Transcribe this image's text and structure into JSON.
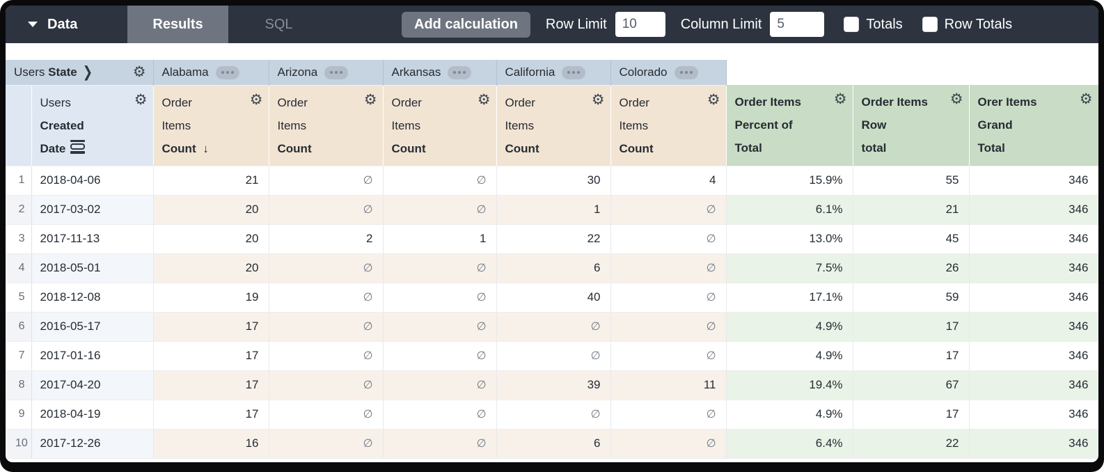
{
  "toolbar": {
    "data_label": "Data",
    "results_tab": "Results",
    "sql_tab": "SQL",
    "add_calculation": "Add calculation",
    "row_limit_label": "Row Limit",
    "row_limit_value": "10",
    "column_limit_label": "Column Limit",
    "column_limit_value": "5",
    "totals_label": "Totals",
    "totals_checked": false,
    "row_totals_label": "Row Totals",
    "row_totals_checked": false
  },
  "icons": {
    "gear": "⚙",
    "chevron": "❯",
    "sort_desc": "↓"
  },
  "pivot_header": {
    "view": "Users",
    "field": "State",
    "values": [
      "Alabama",
      "Arizona",
      "Arkansas",
      "California",
      "Colorado"
    ]
  },
  "column_headers": {
    "dimension": {
      "view": "Users",
      "field_lines": [
        "Created",
        "Date"
      ]
    },
    "measure": {
      "view_lines": [
        "Order",
        "Items"
      ],
      "field": "Count",
      "sorted_desc_on_first": true
    },
    "calculations": [
      {
        "lines": [
          "Order Items",
          "Percent of",
          "Total"
        ]
      },
      {
        "lines": [
          "Order Items",
          "Row",
          "total"
        ]
      },
      {
        "lines": [
          "Orer Items",
          "Grand",
          "Total"
        ]
      }
    ]
  },
  "table": {
    "null_symbol": "∅",
    "rows": [
      {
        "num": "1",
        "date": "2018-04-06",
        "states": [
          "21",
          null,
          null,
          "30",
          "4"
        ],
        "percent_of_total": "15.9%",
        "row_total": "55",
        "grand_total": "346"
      },
      {
        "num": "2",
        "date": "2017-03-02",
        "states": [
          "20",
          null,
          null,
          "1",
          null
        ],
        "percent_of_total": "6.1%",
        "row_total": "21",
        "grand_total": "346"
      },
      {
        "num": "3",
        "date": "2017-11-13",
        "states": [
          "20",
          "2",
          "1",
          "22",
          null
        ],
        "percent_of_total": "13.0%",
        "row_total": "45",
        "grand_total": "346"
      },
      {
        "num": "4",
        "date": "2018-05-01",
        "states": [
          "20",
          null,
          null,
          "6",
          null
        ],
        "percent_of_total": "7.5%",
        "row_total": "26",
        "grand_total": "346"
      },
      {
        "num": "5",
        "date": "2018-12-08",
        "states": [
          "19",
          null,
          null,
          "40",
          null
        ],
        "percent_of_total": "17.1%",
        "row_total": "59",
        "grand_total": "346"
      },
      {
        "num": "6",
        "date": "2016-05-17",
        "states": [
          "17",
          null,
          null,
          null,
          null
        ],
        "percent_of_total": "4.9%",
        "row_total": "17",
        "grand_total": "346"
      },
      {
        "num": "7",
        "date": "2017-01-16",
        "states": [
          "17",
          null,
          null,
          null,
          null
        ],
        "percent_of_total": "4.9%",
        "row_total": "17",
        "grand_total": "346"
      },
      {
        "num": "8",
        "date": "2017-04-20",
        "states": [
          "17",
          null,
          null,
          "39",
          "11"
        ],
        "percent_of_total": "19.4%",
        "row_total": "67",
        "grand_total": "346"
      },
      {
        "num": "9",
        "date": "2018-04-19",
        "states": [
          "17",
          null,
          null,
          null,
          null
        ],
        "percent_of_total": "4.9%",
        "row_total": "17",
        "grand_total": "346"
      },
      {
        "num": "10",
        "date": "2017-12-26",
        "states": [
          "16",
          null,
          null,
          "6",
          null
        ],
        "percent_of_total": "6.4%",
        "row_total": "22",
        "grand_total": "346"
      }
    ]
  },
  "colors": {
    "topbar": "#2d3440",
    "active_tab": "#6e7580",
    "pivot_header_bg": "#c6d3e0",
    "dimension_header_bg": "#dfe8f2",
    "measure_header_bg": "#f2e4d3",
    "calc_header_bg": "#c9dcc5",
    "measure_stripe": "#f8f1ea",
    "calc_stripe": "#eaf3e8"
  }
}
